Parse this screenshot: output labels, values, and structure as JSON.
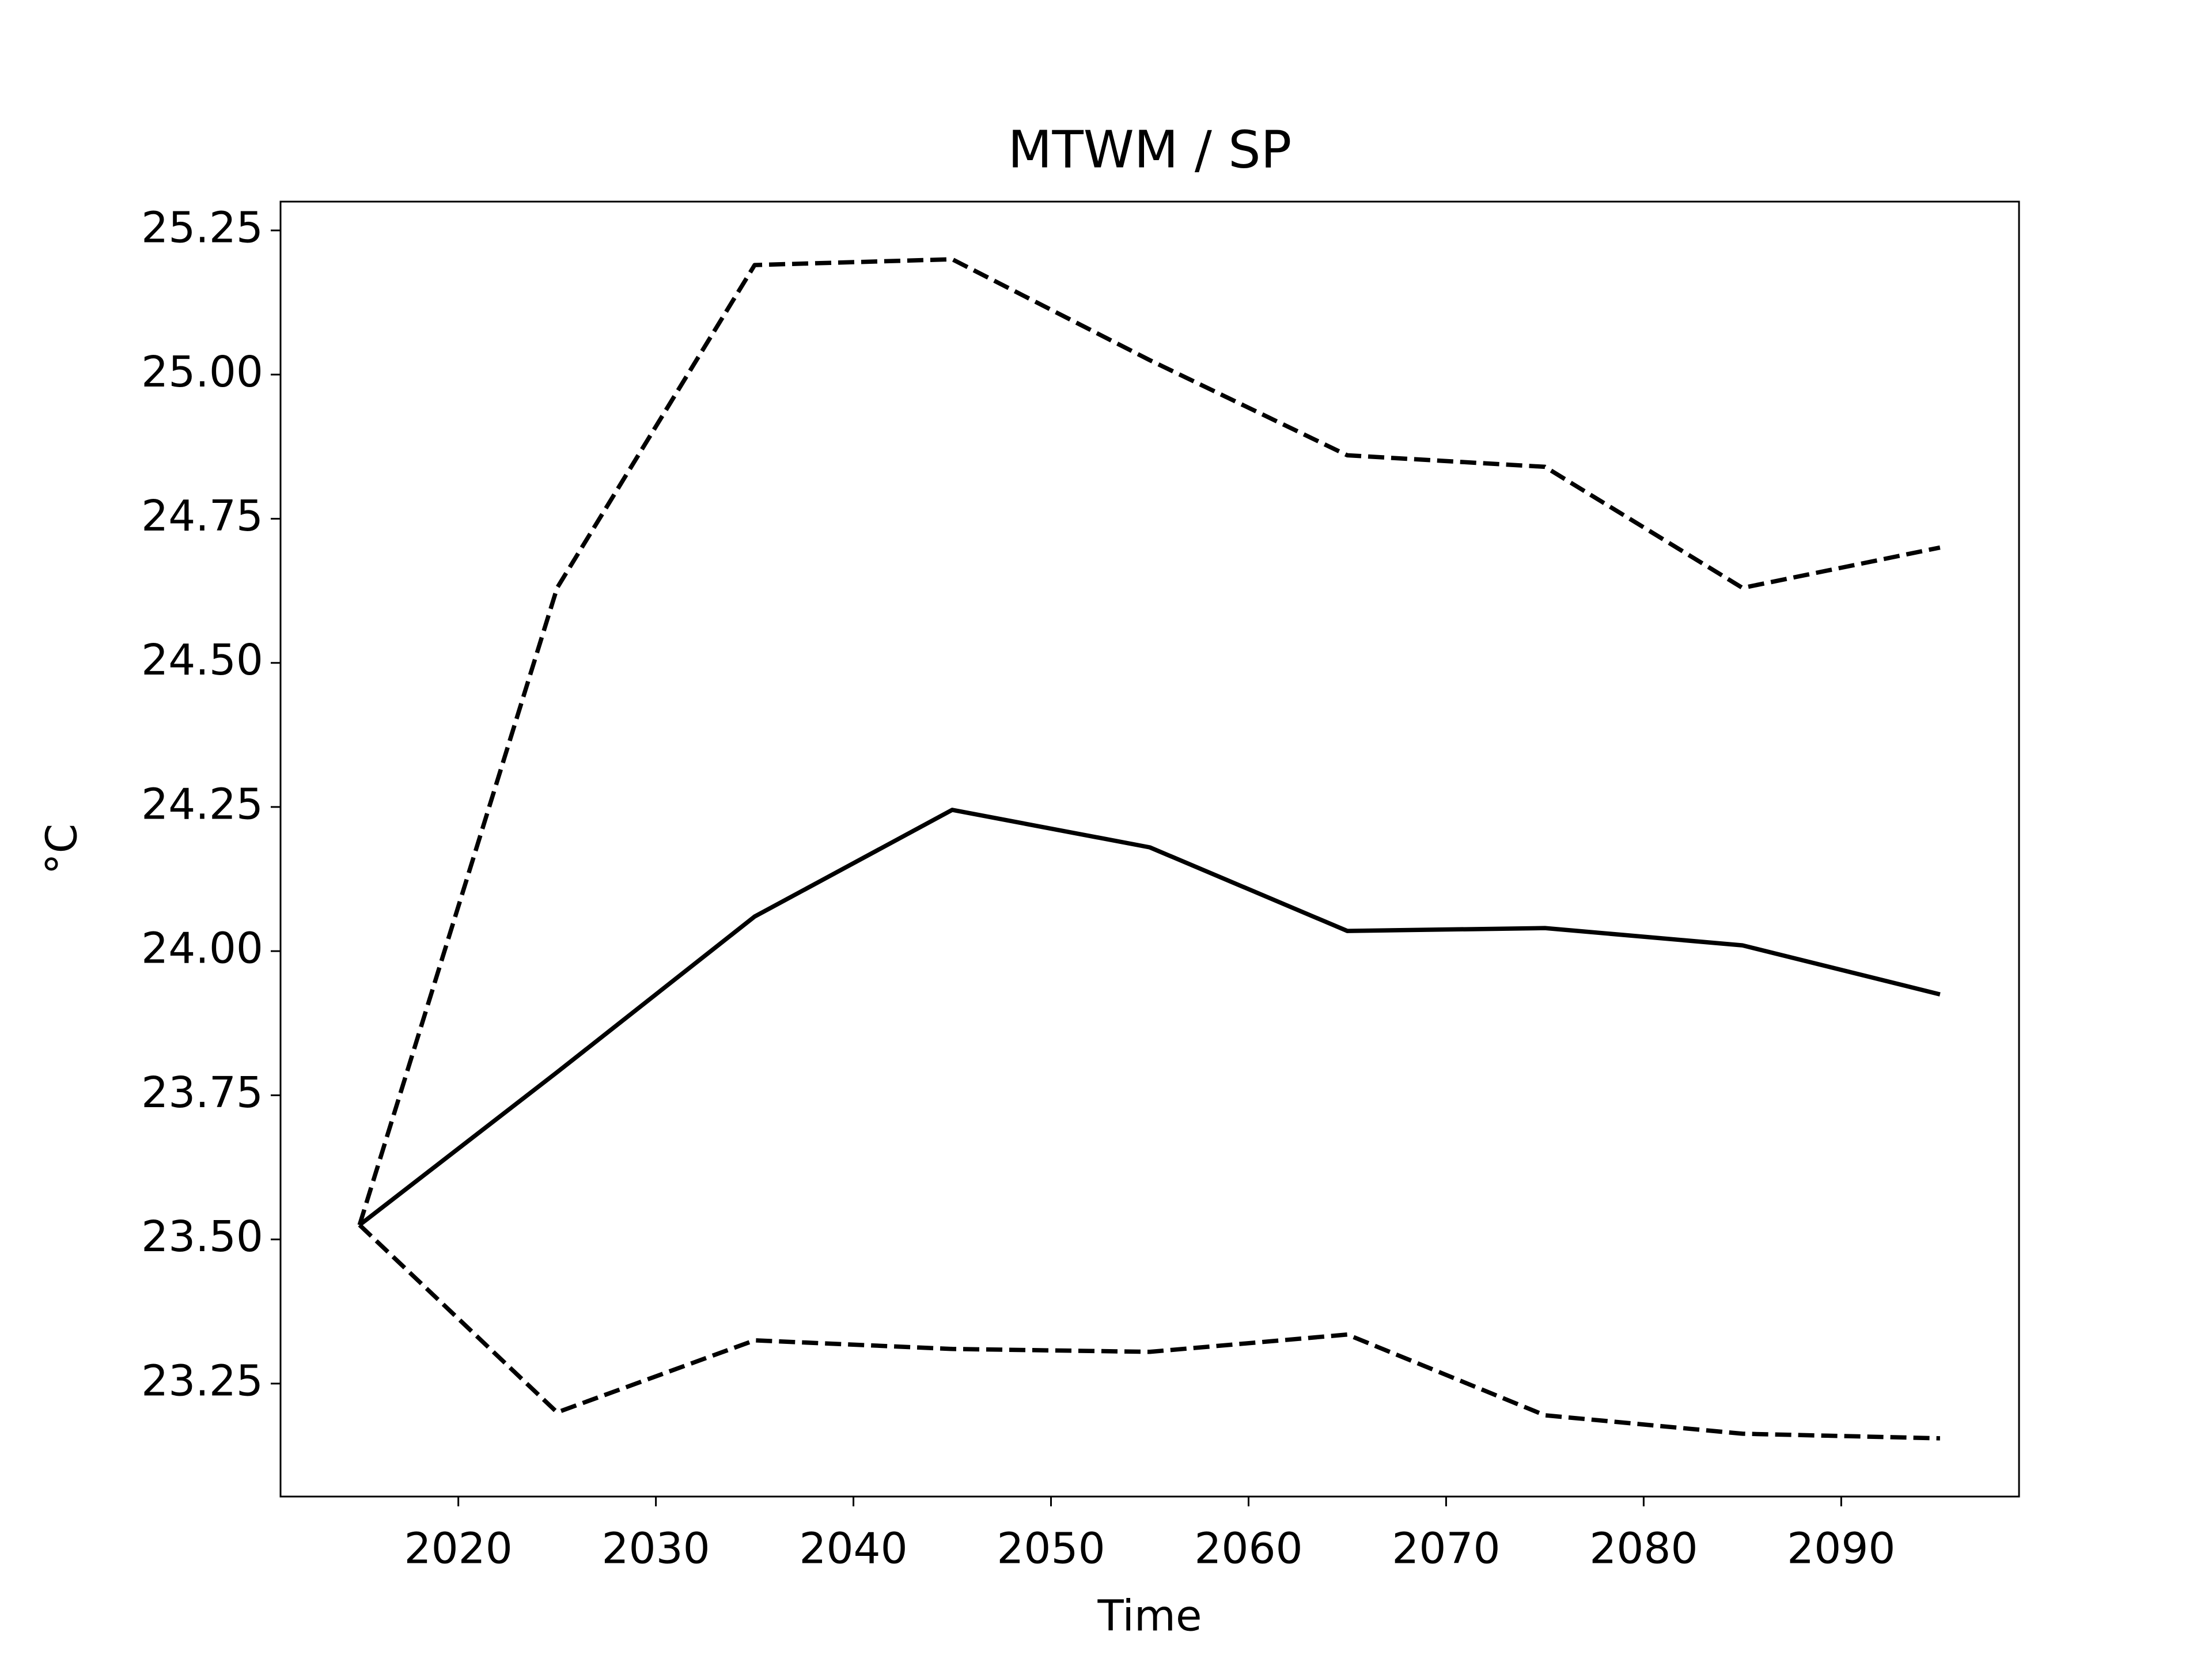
{
  "chart_data": {
    "type": "line",
    "title": "MTWM / SP",
    "xlabel": "Time",
    "ylabel": "°C",
    "x": [
      2015,
      2025,
      2035,
      2045,
      2055,
      2065,
      2075,
      2085,
      2095
    ],
    "series": [
      {
        "color": "#000000",
        "linestyle": "dashed",
        "values": [
          23.525,
          24.63,
          25.19,
          25.2,
          25.025,
          24.86,
          24.84,
          24.63,
          24.7
        ]
      },
      {
        "color": "#000000",
        "linestyle": "solid",
        "values": [
          23.525,
          23.79,
          24.06,
          24.245,
          24.18,
          24.035,
          24.04,
          24.01,
          23.925
        ]
      },
      {
        "color": "#000000",
        "linestyle": "dashed",
        "values": [
          23.525,
          23.2,
          23.325,
          23.31,
          23.305,
          23.335,
          23.195,
          23.163,
          23.155
        ]
      }
    ],
    "xlim": [
      2011,
      2099
    ],
    "xticks": [
      2020,
      2030,
      2040,
      2050,
      2060,
      2070,
      2080,
      2090
    ],
    "ylim": [
      23.054,
      25.3
    ],
    "yticks": [
      {
        "value": 23.25,
        "label": "23.25"
      },
      {
        "value": 23.5,
        "label": "23.50"
      },
      {
        "value": 23.75,
        "label": "23.75"
      },
      {
        "value": 24,
        "label": "24.00"
      },
      {
        "value": 24.25,
        "label": "24.25"
      },
      {
        "value": 24.5,
        "label": "24.50"
      },
      {
        "value": 24.75,
        "label": "24.75"
      },
      {
        "value": 25,
        "label": "25.00"
      },
      {
        "value": 25.25,
        "label": "25.25"
      }
    ],
    "grid": false
  }
}
